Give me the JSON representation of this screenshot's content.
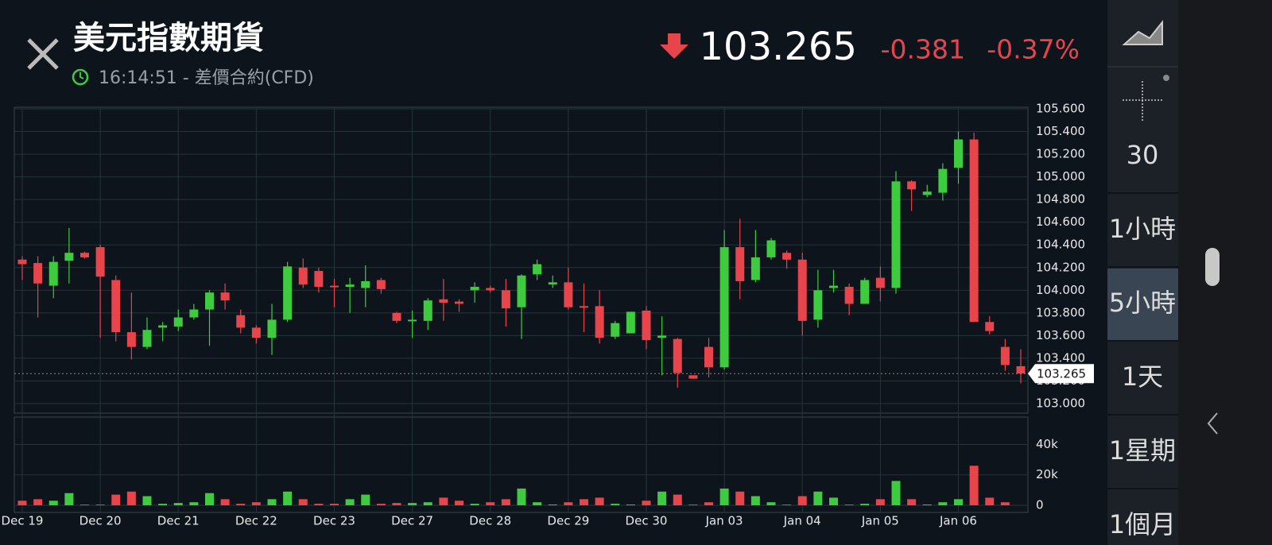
{
  "header": {
    "title": "美元指數期貨",
    "subtitle": "16:14:51 - 差價合約(CFD)",
    "change": -0.381,
    "change_pct": "-0.37%"
  },
  "sidebar": {
    "buttons": [
      "30",
      "1小時",
      "5小時",
      "1天",
      "1星期",
      "1個月"
    ],
    "selected": "5小時"
  },
  "chart_data": {
    "type": "candlestick",
    "categories": [
      "Dec 19",
      null,
      null,
      null,
      null,
      "Dec 20",
      null,
      null,
      null,
      null,
      "Dec 21",
      null,
      null,
      null,
      null,
      "Dec 22",
      null,
      null,
      null,
      null,
      "Dec 23",
      null,
      null,
      null,
      null,
      "Dec 27",
      null,
      null,
      null,
      null,
      "Dec 28",
      null,
      null,
      null,
      null,
      "Dec 29",
      null,
      null,
      null,
      null,
      "Dec 30",
      null,
      null,
      null,
      null,
      "Jan 03",
      null,
      null,
      null,
      null,
      "Jan 04",
      null,
      null,
      null,
      null,
      "Jan 05",
      null,
      null,
      null,
      null,
      "Jan 06",
      null,
      null,
      null,
      null
    ],
    "open": [
      104.27,
      104.24,
      104.04,
      104.26,
      104.33,
      104.38,
      104.09,
      103.63,
      103.5,
      103.67,
      103.68,
      103.76,
      103.83,
      103.98,
      103.78,
      103.67,
      103.58,
      103.74,
      104.2,
      104.17,
      104.04,
      104.03,
      104.02,
      104.09,
      103.8,
      103.73,
      103.73,
      103.92,
      103.9,
      104.0,
      104.02,
      104.0,
      103.85,
      104.14,
      104.05,
      104.07,
      103.86,
      103.86,
      103.59,
      103.62,
      103.82,
      103.58,
      103.57,
      103.25,
      103.5,
      103.32,
      104.38,
      104.09,
      104.29,
      104.33,
      104.27,
      103.74,
      104.02,
      104.03,
      103.88,
      104.11,
      104.02,
      104.96,
      104.84,
      104.86,
      105.08,
      105.33,
      103.72,
      103.5,
      103.33
    ],
    "high": [
      104.3,
      104.3,
      104.3,
      104.55,
      104.34,
      104.4,
      104.13,
      103.98,
      103.76,
      103.72,
      103.83,
      103.88,
      104.0,
      104.06,
      103.83,
      103.69,
      103.88,
      104.25,
      104.28,
      104.2,
      104.1,
      104.11,
      104.22,
      104.11,
      103.81,
      103.82,
      103.93,
      104.1,
      103.92,
      104.07,
      104.04,
      104.1,
      104.14,
      104.27,
      104.13,
      104.2,
      104.06,
      104.0,
      103.73,
      103.81,
      103.86,
      103.77,
      103.58,
      103.25,
      103.58,
      104.53,
      104.63,
      104.53,
      104.46,
      104.35,
      104.33,
      104.18,
      104.18,
      104.06,
      104.11,
      104.21,
      105.05,
      104.97,
      104.93,
      105.12,
      105.4,
      105.39,
      103.77,
      103.57,
      103.48
    ],
    "low": [
      104.09,
      103.76,
      103.93,
      104.06,
      104.28,
      103.58,
      103.55,
      103.39,
      103.48,
      103.55,
      103.64,
      103.74,
      103.51,
      103.83,
      103.62,
      103.53,
      103.43,
      103.72,
      104.02,
      103.98,
      103.85,
      103.8,
      103.85,
      103.97,
      103.71,
      103.58,
      103.65,
      103.73,
      103.81,
      103.89,
      103.98,
      103.68,
      103.57,
      104.09,
      104.02,
      103.83,
      103.63,
      103.53,
      103.57,
      103.62,
      103.48,
      103.25,
      103.14,
      103.22,
      103.23,
      103.3,
      103.92,
      104.07,
      104.27,
      104.19,
      103.6,
      103.67,
      103.98,
      103.78,
      103.88,
      103.9,
      103.97,
      104.7,
      104.82,
      104.79,
      104.94,
      103.72,
      103.61,
      103.29,
      103.18
    ],
    "close": [
      104.23,
      104.06,
      104.25,
      104.33,
      104.29,
      104.12,
      103.63,
      103.5,
      103.65,
      103.69,
      103.76,
      103.83,
      103.98,
      103.91,
      103.67,
      103.58,
      103.74,
      104.21,
      104.05,
      104.03,
      104.035,
      104.05,
      104.08,
      104.01,
      103.73,
      103.74,
      103.91,
      103.89,
      103.88,
      104.03,
      104.0,
      103.84,
      104.13,
      104.23,
      104.07,
      103.85,
      103.85,
      103.58,
      103.71,
      103.81,
      103.56,
      103.6,
      103.27,
      103.22,
      103.32,
      104.38,
      104.08,
      104.29,
      104.44,
      104.27,
      103.73,
      104.0,
      104.04,
      103.88,
      104.09,
      104.02,
      104.96,
      104.89,
      104.87,
      105.07,
      105.33,
      103.72,
      103.64,
      103.34,
      103.265
    ],
    "volume": [
      3000,
      4000,
      3000,
      8000,
      500,
      500,
      7000,
      9000,
      6000,
      1000,
      1500,
      2000,
      8000,
      4000,
      1000,
      2000,
      4000,
      9000,
      4000,
      1000,
      1000,
      4000,
      7000,
      1000,
      1500,
      1500,
      2000,
      5000,
      3000,
      1000,
      2000,
      4000,
      11000,
      2000,
      500,
      2000,
      4000,
      5000,
      1000,
      500,
      3000,
      9000,
      7000,
      500,
      2000,
      11000,
      9000,
      6000,
      2000,
      500,
      6000,
      9000,
      5000,
      500,
      1000,
      4000,
      16000,
      4000,
      500,
      2000,
      4000,
      26000,
      5000,
      2000,
      0
    ],
    "up_color": "#3fcb3f",
    "down_color": "#e8444b",
    "last_price": 103.265,
    "ylim": [
      102.916,
      105.614
    ],
    "yticks": [
      {
        "value": 103.0,
        "label": "103.000"
      },
      {
        "value": 103.2,
        "label": "103.200"
      },
      {
        "value": 103.4,
        "label": "103.400"
      },
      {
        "value": 103.6,
        "label": "103.600"
      },
      {
        "value": 103.8,
        "label": "103.800"
      },
      {
        "value": 104.0,
        "label": "104.000"
      },
      {
        "value": 104.2,
        "label": "104.200"
      },
      {
        "value": 104.4,
        "label": "104.400"
      },
      {
        "value": 104.6,
        "label": "104.600"
      },
      {
        "value": 104.8,
        "label": "104.800"
      },
      {
        "value": 105.0,
        "label": "105.000"
      },
      {
        "value": 105.2,
        "label": "105.200"
      },
      {
        "value": 105.4,
        "label": "105.400"
      },
      {
        "value": 105.6,
        "label": "105.600"
      }
    ],
    "volume_ylim": [
      0,
      58000
    ],
    "volume_yticks": [
      0,
      {
        "value": 20000,
        "label": "20k"
      },
      {
        "value": 40000,
        "label": "40k"
      }
    ],
    "grid": true
  }
}
